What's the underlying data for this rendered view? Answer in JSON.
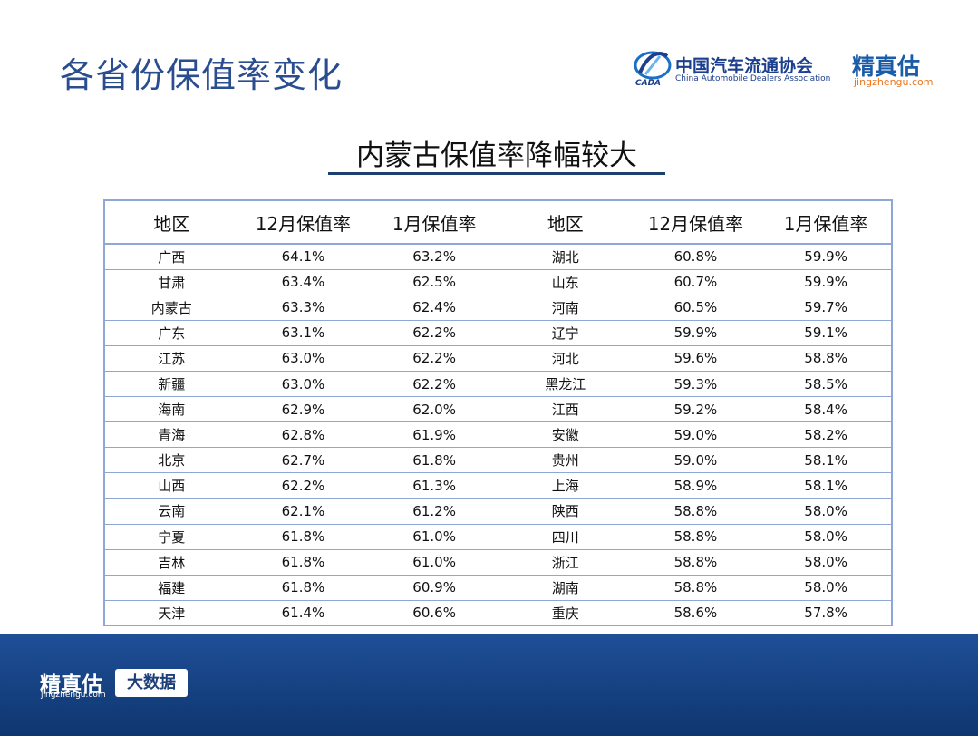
{
  "header": {
    "title": "各省份保值率变化",
    "cada_logo": {
      "cn": "中国汽车流通协会",
      "en": "China Automobile Dealers Association",
      "mark_text": "CADA"
    },
    "jzg_logo": {
      "cn": "精真估",
      "url": "jingzhengu.com"
    }
  },
  "subtitle": "内蒙古保值率降幅较大",
  "table": {
    "headers": [
      "地区",
      "12月保值率",
      "1月保值率",
      "地区",
      "12月保值率",
      "1月保值率"
    ],
    "rows": [
      [
        "广西",
        "64.1%",
        "63.2%",
        "湖北",
        "60.8%",
        "59.9%"
      ],
      [
        "甘肃",
        "63.4%",
        "62.5%",
        "山东",
        "60.7%",
        "59.9%"
      ],
      [
        "内蒙古",
        "63.3%",
        "62.4%",
        "河南",
        "60.5%",
        "59.7%"
      ],
      [
        "广东",
        "63.1%",
        "62.2%",
        "辽宁",
        "59.9%",
        "59.1%"
      ],
      [
        "江苏",
        "63.0%",
        "62.2%",
        "河北",
        "59.6%",
        "58.8%"
      ],
      [
        "新疆",
        "63.0%",
        "62.2%",
        "黑龙江",
        "59.3%",
        "58.5%"
      ],
      [
        "海南",
        "62.9%",
        "62.0%",
        "江西",
        "59.2%",
        "58.4%"
      ],
      [
        "青海",
        "62.8%",
        "61.9%",
        "安徽",
        "59.0%",
        "58.2%"
      ],
      [
        "北京",
        "62.7%",
        "61.8%",
        "贵州",
        "59.0%",
        "58.1%"
      ],
      [
        "山西",
        "62.2%",
        "61.3%",
        "上海",
        "58.9%",
        "58.1%"
      ],
      [
        "云南",
        "62.1%",
        "61.2%",
        "陕西",
        "58.8%",
        "58.0%"
      ],
      [
        "宁夏",
        "61.8%",
        "61.0%",
        "四川",
        "58.8%",
        "58.0%"
      ],
      [
        "吉林",
        "61.8%",
        "61.0%",
        "浙江",
        "58.8%",
        "58.0%"
      ],
      [
        "福建",
        "61.8%",
        "60.9%",
        "湖南",
        "58.8%",
        "58.0%"
      ],
      [
        "天津",
        "61.4%",
        "60.6%",
        "重庆",
        "58.6%",
        "57.8%"
      ]
    ]
  },
  "footer": {
    "logo_cn": "精真估",
    "logo_url": "jingzhengu.com",
    "badge": "大数据"
  },
  "colors": {
    "title": "#2a4d8f",
    "table_border": "#8ea7d6",
    "footer_band": "#1a4589",
    "jzg_url": "#e8761e"
  }
}
